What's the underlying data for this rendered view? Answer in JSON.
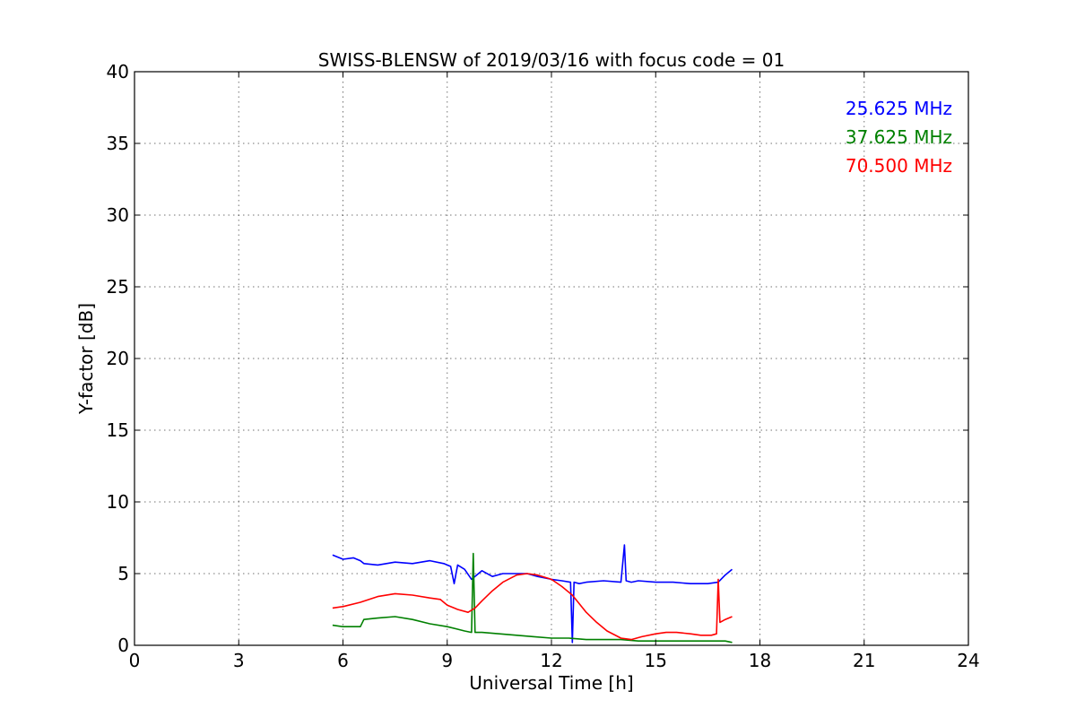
{
  "chart_data": {
    "type": "line",
    "title": "SWISS-BLENSW of 2019/03/16 with focus code = 01",
    "xlabel": "Universal Time [h]",
    "ylabel": "Y-factor [dB]",
    "xlim": [
      0,
      24
    ],
    "ylim": [
      0,
      40
    ],
    "xticks": [
      "0",
      "3",
      "6",
      "9",
      "12",
      "15",
      "18",
      "21",
      "24"
    ],
    "yticks": [
      "0",
      "5",
      "10",
      "15",
      "20",
      "25",
      "30",
      "35",
      "40"
    ],
    "grid": true,
    "legend_position": "top-right",
    "series": [
      {
        "name": "25.625 MHz",
        "color": "#0000ff",
        "x": [
          5.7,
          6.0,
          6.3,
          6.5,
          6.6,
          7.0,
          7.5,
          8.0,
          8.5,
          8.9,
          9.1,
          9.2,
          9.3,
          9.5,
          9.7,
          10.0,
          10.3,
          10.6,
          11.0,
          11.3,
          11.6,
          12.0,
          12.3,
          12.55,
          12.6,
          12.65,
          12.8,
          13.0,
          13.5,
          14.0,
          14.1,
          14.15,
          14.3,
          14.5,
          15.0,
          15.5,
          16.0,
          16.5,
          16.8,
          17.0,
          17.2
        ],
        "y": [
          6.3,
          6.0,
          6.1,
          5.9,
          5.7,
          5.6,
          5.8,
          5.7,
          5.9,
          5.7,
          5.5,
          4.3,
          5.6,
          5.3,
          4.6,
          5.2,
          4.8,
          5.0,
          5.0,
          5.0,
          4.8,
          4.6,
          4.5,
          4.4,
          0.2,
          4.4,
          4.3,
          4.4,
          4.5,
          4.4,
          7.0,
          4.5,
          4.4,
          4.5,
          4.4,
          4.4,
          4.3,
          4.3,
          4.4,
          4.9,
          5.3
        ]
      },
      {
        "name": "37.625 MHz",
        "color": "#008000",
        "x": [
          5.7,
          6.0,
          6.5,
          6.6,
          7.0,
          7.5,
          8.0,
          8.5,
          9.0,
          9.5,
          9.7,
          9.75,
          9.8,
          10.0,
          10.5,
          11.0,
          11.5,
          12.0,
          12.5,
          13.0,
          13.5,
          14.0,
          14.5,
          15.0,
          15.5,
          16.0,
          16.5,
          17.0,
          17.2
        ],
        "y": [
          1.4,
          1.3,
          1.3,
          1.8,
          1.9,
          2.0,
          1.8,
          1.5,
          1.3,
          1.0,
          0.9,
          6.4,
          0.9,
          0.9,
          0.8,
          0.7,
          0.6,
          0.5,
          0.5,
          0.4,
          0.4,
          0.4,
          0.3,
          0.3,
          0.3,
          0.3,
          0.3,
          0.3,
          0.2
        ]
      },
      {
        "name": "70.500 MHz",
        "color": "#ff0000",
        "x": [
          5.7,
          6.0,
          6.5,
          7.0,
          7.5,
          8.0,
          8.5,
          8.8,
          9.0,
          9.3,
          9.6,
          9.8,
          10.0,
          10.3,
          10.6,
          11.0,
          11.3,
          11.6,
          12.0,
          12.3,
          12.6,
          13.0,
          13.3,
          13.6,
          14.0,
          14.3,
          14.6,
          15.0,
          15.3,
          15.6,
          16.0,
          16.3,
          16.6,
          16.75,
          16.8,
          16.85,
          17.0,
          17.2
        ],
        "y": [
          2.6,
          2.7,
          3.0,
          3.4,
          3.6,
          3.5,
          3.3,
          3.2,
          2.8,
          2.5,
          2.3,
          2.6,
          3.1,
          3.8,
          4.4,
          4.9,
          5.0,
          4.9,
          4.6,
          4.1,
          3.5,
          2.3,
          1.6,
          1.0,
          0.5,
          0.4,
          0.6,
          0.8,
          0.9,
          0.9,
          0.8,
          0.7,
          0.7,
          0.8,
          4.6,
          1.6,
          1.8,
          2.0
        ]
      }
    ]
  }
}
